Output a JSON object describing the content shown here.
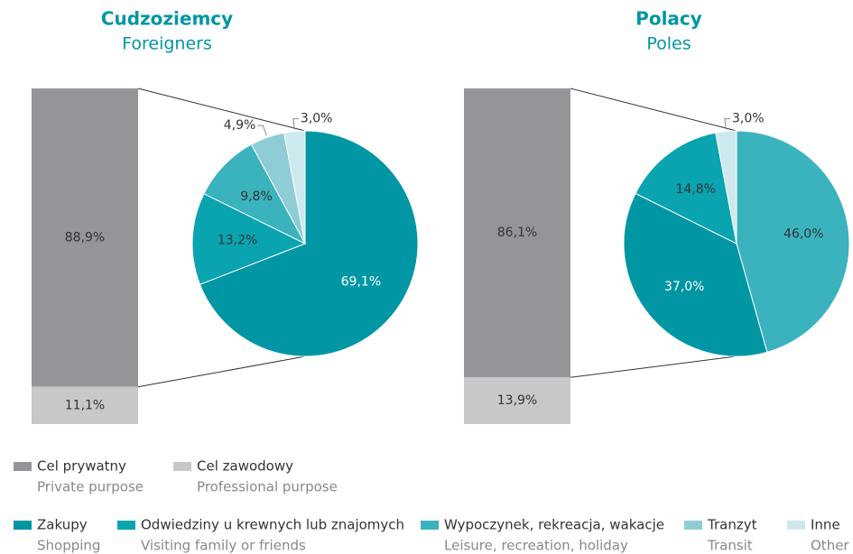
{
  "chart_data": [
    {
      "type": "bar-of-pie",
      "title": "Cudzoziemcy",
      "subtitle": "Foreigners",
      "bar": {
        "values": [
          88.9,
          11.1
        ],
        "value_labels": [
          "88,9%",
          "11,1%"
        ],
        "colors": [
          "#939598",
          "#c7c8ca"
        ]
      },
      "pie": {
        "values": [
          69.1,
          13.2,
          9.8,
          4.9,
          3.0
        ],
        "value_labels": [
          "69,1%",
          "13,2%",
          "9,8%",
          "4,9%",
          "3,0%"
        ],
        "colors": [
          "#0096a3",
          "#0aa3b0",
          "#3bb3be",
          "#8ecdd5",
          "#cde9ee"
        ]
      }
    },
    {
      "type": "bar-of-pie",
      "title": "Polacy",
      "subtitle": "Poles",
      "bar": {
        "values": [
          86.1,
          13.9
        ],
        "value_labels": [
          "86,1%",
          "13,9%"
        ],
        "colors": [
          "#939598",
          "#c7c8ca"
        ]
      },
      "pie": {
        "values": [
          46.0,
          37.0,
          14.8,
          3.0
        ],
        "value_labels": [
          "46,0%",
          "37,0%",
          "14,8%",
          "3,0%"
        ],
        "colors": [
          "#3bb3be",
          "#0096a3",
          "#0aa3b0",
          "#cde9ee"
        ]
      }
    }
  ],
  "legend": {
    "bar_items": [
      {
        "name": "Cel prywatny",
        "translation": "Private purpose",
        "color": "#939598"
      },
      {
        "name": "Cel zawodowy",
        "translation": "Professional purpose",
        "color": "#c7c8ca"
      }
    ],
    "pie_items": [
      {
        "name": "Zakupy",
        "translation": "Shopping",
        "color": "#0096a3"
      },
      {
        "name": "Odwiedziny u krewnych lub znajomych",
        "translation": "Visiting family or friends",
        "color": "#0aa3b0"
      },
      {
        "name": "Wypoczynek, rekreacja, wakacje",
        "translation": "Leisure, recreation, holiday",
        "color": "#3bb3be"
      },
      {
        "name": "Tranzyt",
        "translation": "Transit",
        "color": "#8ecdd5"
      },
      {
        "name": "Inne",
        "translation": "Other",
        "color": "#cde9ee"
      }
    ]
  }
}
